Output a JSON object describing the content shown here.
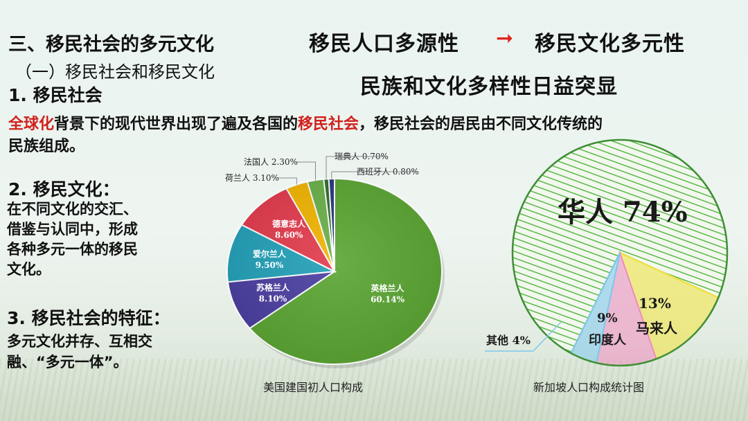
{
  "slide": {
    "section_title": "三、移民社会的多元文化",
    "sub_title": "（一）移民社会和移民文化",
    "item1_title": "1. 移民社会",
    "para1_red1": "全球化",
    "para1_text1": "背景下的现代世界出现了遍及各国的",
    "para1_red2": "移民社会",
    "para1_text2": "，移民社会的居民由不同文化传统的",
    "para1_text3": "民族组成。",
    "item2_title": "2. 移民文化：",
    "item2_lines": [
      "在不同文化的交汇、",
      "借鉴与认同中，形成",
      "各种多元一体的移民",
      "文化。"
    ],
    "item3_title": "3. 移民社会的特征：",
    "item3_lines": [
      "多元文化并存、互相交",
      "融、“多元一体”。"
    ],
    "headline_left": "移民人口多源性",
    "headline_arrow": "➞",
    "headline_right": "移民文化多元性",
    "headline_second": "民族和文化多样性日益突显"
  },
  "chart_data": [
    {
      "type": "pie",
      "title": "美国建国初人口构成",
      "slices": [
        {
          "label": "英格兰人",
          "value": 60.14,
          "display": "60.14%",
          "color": "#5aa532"
        },
        {
          "label": "苏格兰人",
          "value": 8.1,
          "display": "8.10%",
          "color": "#4a3ea0"
        },
        {
          "label": "爱尔兰人",
          "value": 9.5,
          "display": "9.50%",
          "color": "#22a0b8"
        },
        {
          "label": "德意志人",
          "value": 8.6,
          "display": "8.60%",
          "color": "#e23a4c"
        },
        {
          "label": "荷兰人",
          "value": 3.1,
          "display": "3.10%",
          "color": "#f0b400"
        },
        {
          "label": "法国人",
          "value": 2.3,
          "display": "2.30%",
          "color": "#6ab04a"
        },
        {
          "label": "瑞典人",
          "value": 0.7,
          "display": "0.70%",
          "color": "#2c6e2a"
        },
        {
          "label": "西班牙人",
          "value": 0.8,
          "display": "0.80%",
          "color": "#2a3580"
        }
      ]
    },
    {
      "type": "pie",
      "title": "新加坡人口构成统计图",
      "slices": [
        {
          "label": "华人",
          "value": 74,
          "display": "74%",
          "color": "#5bc24a"
        },
        {
          "label": "马来人",
          "value": 13,
          "display": "13%",
          "color": "#f3e33a"
        },
        {
          "label": "印度人",
          "value": 9,
          "display": "9%",
          "color": "#f08cc0"
        },
        {
          "label": "其他",
          "value": 4,
          "display": "4%",
          "color": "#7ec8ee"
        }
      ]
    }
  ]
}
